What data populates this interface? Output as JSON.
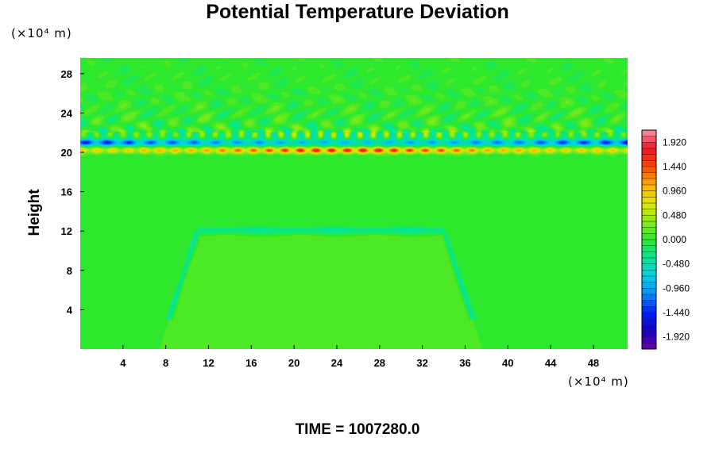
{
  "chart_data": {
    "type": "heatmap",
    "title": "Potential Temperature Deviation",
    "xlabel": "",
    "ylabel": "Height",
    "x_unit": "(×10⁴ m)",
    "y_unit": "(×10⁴ m)",
    "xlim": [
      0,
      51.2
    ],
    "ylim": [
      0,
      29.6
    ],
    "x_ticks": [
      4,
      8,
      12,
      16,
      20,
      24,
      28,
      32,
      36,
      40,
      44,
      48
    ],
    "y_ticks": [
      4,
      8,
      12,
      16,
      20,
      24,
      28
    ],
    "colorbar": {
      "range": [
        -2.16,
        2.16
      ],
      "step": 0.12,
      "tick_labels": [
        "1.920",
        "1.440",
        "0.960",
        "0.480",
        "0.000",
        "-0.480",
        "-0.960",
        "-1.440",
        "-1.920"
      ],
      "tick_values": [
        1.92,
        1.44,
        0.96,
        0.48,
        0.0,
        -0.48,
        -0.96,
        -1.44,
        -1.92
      ]
    },
    "field_features": [
      {
        "feature": "background",
        "value": 0.0
      },
      {
        "feature": "negative band",
        "y": 21.0,
        "value_min": -1.6
      },
      {
        "feature": "positive band",
        "y": 20.2,
        "value_max": 1.9
      },
      {
        "feature": "wave layer",
        "y_range": [
          22,
          29.6
        ],
        "value_range": [
          -0.4,
          0.4
        ]
      },
      {
        "feature": "dome outline",
        "x_range": [
          8,
          37
        ],
        "y_top": 12,
        "value": -0.4
      }
    ]
  },
  "footer": {
    "time_label": "TIME = 1007280.0"
  },
  "colors": {
    "background": "#ffffff",
    "field_zero": "#2ee82e"
  }
}
